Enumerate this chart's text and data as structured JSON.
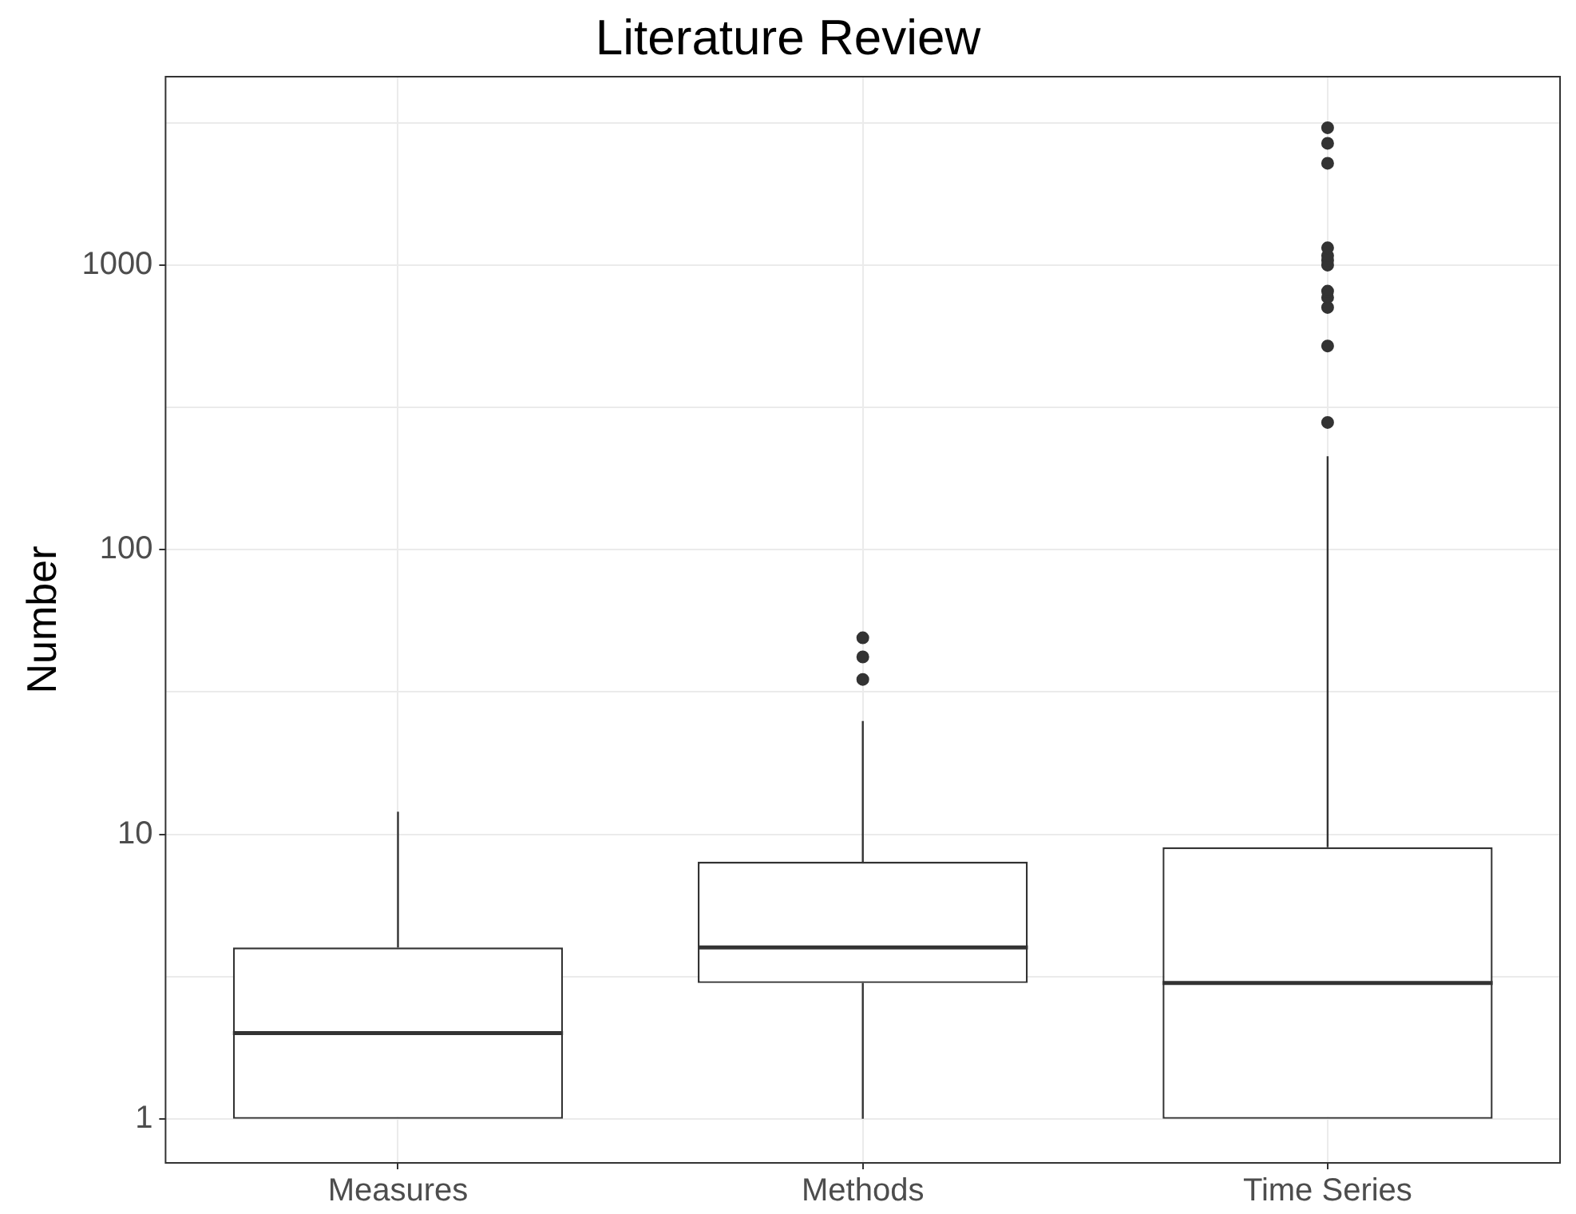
{
  "chart_data": {
    "type": "box",
    "title": "Literature Review",
    "ylabel": "Number",
    "categories": [
      "Measures",
      "Methods",
      "Time Series"
    ],
    "boxes": [
      {
        "low": 1,
        "q1": 1,
        "median": 2,
        "q3": 4,
        "high": 12
      },
      {
        "low": 1,
        "q1": 3,
        "median": 4,
        "q3": 8,
        "high": 25,
        "outliers": [
          35,
          42,
          49
        ]
      },
      {
        "low": 1,
        "q1": 1,
        "median": 3,
        "q3": 9,
        "high": 213,
        "outliers": [
          280,
          520,
          710,
          770,
          810,
          1000,
          1040,
          1080,
          1150,
          2280,
          2680,
          3040
        ]
      }
    ],
    "color": "#333333",
    "log": true,
    "ylim": [
      0.706,
      4595
    ],
    "yticks": [
      1,
      {
        "value": 3.162,
        "label": null
      },
      10,
      {
        "value": 31.62,
        "label": null
      },
      100,
      {
        "value": 316.2,
        "label": null
      },
      1000,
      {
        "value": 3162,
        "label": null
      }
    ],
    "grid": true,
    "legend": false,
    "marker": "circle"
  }
}
